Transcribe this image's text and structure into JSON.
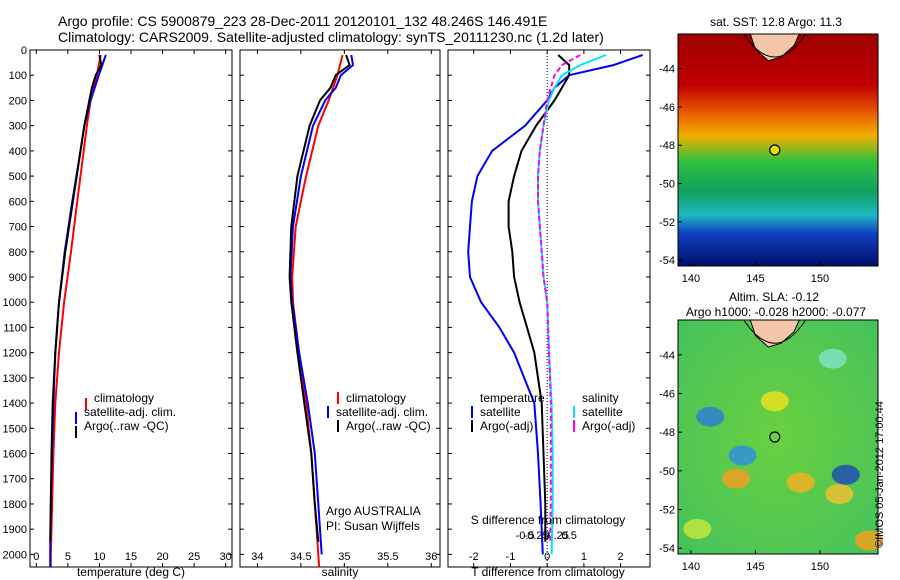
{
  "header": {
    "line1": "Argo profile: CS 5900879_223 28-Dec-2011 20120101_132 48.246S 146.491E",
    "line2": "Climatology: CARS2009. Satellite-adjusted climatology: synTS_20111230.nc (1.2d later)"
  },
  "depth_ticks": [
    "0",
    "100",
    "200",
    "300",
    "400",
    "500",
    "600",
    "700",
    "800",
    "900",
    "1000",
    "1100",
    "1200",
    "1300",
    "1400",
    "1500",
    "1600",
    "1700",
    "1800",
    "1900",
    "2000"
  ],
  "colors": {
    "climatology": "#ff0000",
    "satellite": "#0000ff",
    "argo": "#000000",
    "salinity_sat": "#00e5ff",
    "salinity_argo": "#ff00ff"
  },
  "chart_data": [
    {
      "type": "line",
      "xlabel": "temperature (deg C)",
      "ylabel": "",
      "xlim": [
        -1,
        31
      ],
      "ylim": [
        2050,
        0
      ],
      "x_ticks": [
        "0",
        "5",
        "10",
        "15",
        "20",
        "25",
        "30"
      ],
      "legend": [
        "climatology",
        "satellite-adj. clim.",
        "Argo(..raw -QC)"
      ],
      "series": [
        {
          "name": "climatology",
          "depth": [
            20,
            100,
            200,
            300,
            400,
            600,
            800,
            1000,
            1200,
            1400,
            1600,
            1800,
            2000,
            2050
          ],
          "values": [
            10.2,
            9.6,
            8.6,
            8.0,
            7.5,
            6.5,
            5.5,
            4.4,
            3.6,
            3.0,
            2.7,
            2.5,
            2.3,
            2.3
          ]
        },
        {
          "name": "satellite-adj. clim.",
          "depth": [
            20,
            100,
            200,
            300,
            400,
            600,
            800,
            1000,
            1200,
            1400,
            1600,
            1800,
            2000,
            2050
          ],
          "values": [
            11.0,
            9.9,
            8.6,
            7.6,
            7.0,
            5.7,
            4.5,
            3.6,
            3.0,
            2.7,
            2.5,
            2.3,
            2.2,
            2.2
          ]
        },
        {
          "name": "Argo(..raw -QC)",
          "depth": [
            20,
            60,
            100,
            150,
            200,
            300,
            400,
            600,
            800,
            1000,
            1200,
            1400,
            1600,
            1800,
            1950
          ],
          "values": [
            10.0,
            10.3,
            9.4,
            8.8,
            8.4,
            7.6,
            7.0,
            5.8,
            4.6,
            3.6,
            3.0,
            2.6,
            2.4,
            2.3,
            2.2
          ]
        }
      ]
    },
    {
      "type": "line",
      "xlabel": "salinity",
      "ylabel": "",
      "xlim": [
        33.8,
        36.1
      ],
      "ylim": [
        2050,
        0
      ],
      "x_ticks": [
        "34",
        "34.5",
        "35",
        "35.5",
        "36"
      ],
      "legend": [
        "climatology",
        "satellite-adj. clim.",
        "Argo(..raw -QC)"
      ],
      "annotation": [
        "Argo AUSTRALIA",
        "PI: Susan Wijffels"
      ],
      "series": [
        {
          "name": "climatology",
          "depth": [
            20,
            100,
            200,
            300,
            500,
            700,
            900,
            1000,
            1200,
            1400,
            1600,
            1800,
            2000,
            2050
          ],
          "values": [
            34.98,
            34.92,
            34.82,
            34.7,
            34.56,
            34.44,
            34.4,
            34.41,
            34.48,
            34.56,
            34.62,
            34.66,
            34.7,
            34.71
          ]
        },
        {
          "name": "satellite-adj. clim.",
          "depth": [
            20,
            60,
            100,
            150,
            200,
            300,
            500,
            700,
            900,
            1000,
            1200,
            1400,
            1600,
            1800,
            2000
          ],
          "values": [
            35.08,
            35.1,
            34.96,
            34.9,
            34.78,
            34.64,
            34.5,
            34.41,
            34.38,
            34.4,
            34.48,
            34.58,
            34.66,
            34.7,
            34.74
          ]
        },
        {
          "name": "Argo(..raw -QC)",
          "depth": [
            20,
            60,
            100,
            150,
            200,
            300,
            500,
            700,
            900,
            1000,
            1200,
            1400,
            1600,
            1800,
            1950
          ],
          "values": [
            35.02,
            35.06,
            34.9,
            34.84,
            34.72,
            34.6,
            34.46,
            34.39,
            34.37,
            34.39,
            34.46,
            34.54,
            34.62,
            34.66,
            34.7
          ]
        }
      ]
    },
    {
      "type": "line",
      "xlabel": "T difference from climatology",
      "top_label": "S difference from climatology",
      "xlim": [
        -2.7,
        2.8
      ],
      "ylim": [
        2050,
        0
      ],
      "x_ticks": [
        "-2",
        "-1",
        "0",
        "1",
        "2"
      ],
      "top_ticks": [
        "-0.5",
        "-0.25",
        "0",
        "0.25",
        "0.5"
      ],
      "legend_temperature": [
        "temperature",
        "satellite",
        "Argo(-adj)"
      ],
      "legend_salinity": [
        "salinity",
        "satellite",
        "Argo(-adj)"
      ],
      "series": [
        {
          "name": "satellite",
          "depth": [
            20,
            60,
            100,
            150,
            200,
            300,
            400,
            500,
            600,
            700,
            800,
            900,
            1000,
            1100,
            1200,
            1400,
            1600,
            1800,
            2000
          ],
          "values": [
            2.6,
            1.8,
            0.6,
            0.2,
            0.0,
            -0.6,
            -1.5,
            -1.9,
            -2.05,
            -2.1,
            -2.15,
            -2.1,
            -1.8,
            -1.3,
            -0.9,
            -0.35,
            -0.25,
            -0.18,
            -0.12
          ]
        },
        {
          "name": "Argo(-adj)",
          "depth": [
            20,
            60,
            100,
            150,
            200,
            300,
            400,
            500,
            600,
            700,
            800,
            900,
            1000,
            1100,
            1200,
            1400,
            1600,
            1800,
            1950
          ],
          "values": [
            0.3,
            0.6,
            0.6,
            0.4,
            0.2,
            -0.3,
            -0.7,
            -0.9,
            -1.05,
            -1.05,
            -0.95,
            -0.9,
            -0.75,
            -0.55,
            -0.35,
            -0.15,
            -0.1,
            -0.05,
            -0.05
          ]
        }
      ]
    },
    {
      "type": "heatmap",
      "title": "sat. SST: 12.8 Argo: 11.3",
      "x_ticks": [
        "140",
        "145",
        "150"
      ],
      "y_ticks": [
        "-44",
        "-46",
        "-48",
        "-50",
        "-52",
        "-54"
      ],
      "xlim": [
        139,
        154.5
      ],
      "ylim": [
        -54.3,
        -42.2
      ],
      "marker": {
        "lon": 146.5,
        "lat": -48.25
      }
    },
    {
      "type": "heatmap",
      "title_line1": "Altim. SLA: -0.12",
      "title_line2": "Argo h1000: -0.028 h2000: -0.077",
      "x_ticks": [
        "140",
        "145",
        "150"
      ],
      "y_ticks": [
        "-44",
        "-46",
        "-48",
        "-50",
        "-52",
        "-54"
      ],
      "xlim": [
        139,
        154.5
      ],
      "ylim": [
        -54.3,
        -42.2
      ],
      "marker": {
        "lon": 146.5,
        "lat": -48.25
      }
    }
  ],
  "copyright": "©IMOS 05-Jan-2012 17:00:44"
}
